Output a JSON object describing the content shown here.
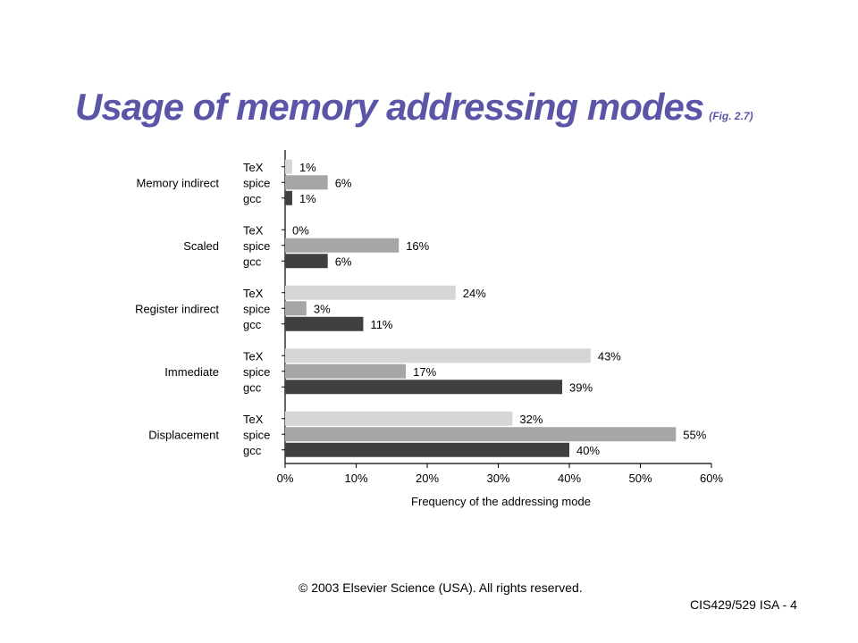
{
  "slide": {
    "title": "Usage of memory addressing modes",
    "figure_ref": "(Fig. 2.7)",
    "copyright": "© 2003 Elsevier Science (USA). All rights reserved.",
    "footer": "CIS429/529  ISA - 4"
  },
  "chart_data": {
    "type": "bar",
    "orientation": "horizontal",
    "categories": [
      "Memory indirect",
      "Scaled",
      "Register indirect",
      "Immediate",
      "Displacement"
    ],
    "series": [
      {
        "name": "TeX",
        "color": "#d6d6d6",
        "values": [
          1,
          0,
          24,
          43,
          32
        ],
        "labels": [
          "1%",
          "0%",
          "24%",
          "43%",
          "32%"
        ]
      },
      {
        "name": "spice",
        "color": "#a6a6a6",
        "values": [
          6,
          16,
          3,
          17,
          55
        ],
        "labels": [
          "6%",
          "16%",
          "3%",
          "17%",
          "55%"
        ]
      },
      {
        "name": "gcc",
        "color": "#404040",
        "values": [
          1,
          6,
          11,
          39,
          40
        ],
        "labels": [
          "1%",
          "6%",
          "11%",
          "39%",
          "40%"
        ]
      }
    ],
    "xlabel": "Frequency of the addressing mode",
    "xlim": [
      0,
      60
    ],
    "xticks": [
      "0%",
      "10%",
      "20%",
      "30%",
      "40%",
      "50%",
      "60%"
    ],
    "grid": false
  }
}
